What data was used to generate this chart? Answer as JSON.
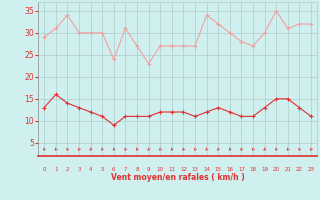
{
  "x": [
    0,
    1,
    2,
    3,
    4,
    5,
    6,
    7,
    8,
    9,
    10,
    11,
    12,
    13,
    14,
    15,
    16,
    17,
    18,
    19,
    20,
    21,
    22,
    23
  ],
  "mean_wind": [
    13,
    16,
    14,
    13,
    12,
    11,
    9,
    11,
    11,
    11,
    12,
    12,
    12,
    11,
    12,
    13,
    12,
    11,
    11,
    13,
    15,
    15,
    13,
    11
  ],
  "gust_wind": [
    29,
    31,
    34,
    30,
    30,
    30,
    24,
    31,
    27,
    23,
    27,
    27,
    27,
    27,
    34,
    32,
    30,
    28,
    27,
    30,
    35,
    31,
    32,
    32
  ],
  "bg_color": "#cff0ef",
  "grid_color": "#b0cccc",
  "line_color_mean": "#e03030",
  "line_color_gust": "#f0a0a0",
  "xlabel": "Vent moyen/en rafales ( km/h )",
  "xlabel_color": "#e03030",
  "yticks": [
    5,
    10,
    15,
    20,
    25,
    30,
    35
  ],
  "ylim": [
    2,
    37
  ],
  "xlim": [
    -0.5,
    23.5
  ],
  "arrow_color": "#e03030",
  "figwidth": 3.2,
  "figheight": 2.0,
  "dpi": 100
}
